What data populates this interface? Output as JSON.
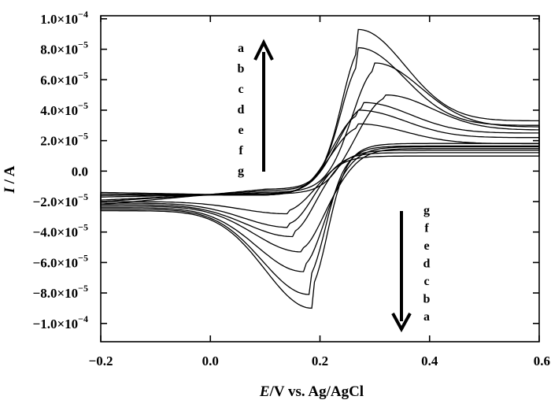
{
  "chart_data": {
    "type": "line",
    "xlabel": {
      "italic": "E",
      "rest": "/V vs. Ag/AgCl"
    },
    "ylabel": {
      "italic": "I",
      "rest": " / A"
    },
    "xlim": [
      -0.2,
      0.6
    ],
    "ylim": [
      -0.000112,
      0.000102
    ],
    "x_ticks": [
      -0.2,
      0.0,
      0.2,
      0.4,
      0.6
    ],
    "x_tick_labels": [
      "−0.2",
      "0.0",
      "0.2",
      "0.4",
      "0.6"
    ],
    "y_ticks": [
      0.0001,
      8e-05,
      6e-05,
      4e-05,
      2e-05,
      0,
      -2e-05,
      -4e-05,
      -6e-05,
      -8e-05,
      -0.0001
    ],
    "y_tick_labels": [
      {
        "mant": "1.0",
        "exp": "−4"
      },
      {
        "mant": "8.0",
        "exp": "−5"
      },
      {
        "mant": "6.0",
        "exp": "−5"
      },
      {
        "mant": "4.0",
        "exp": "−5"
      },
      {
        "mant": "2.0",
        "exp": "−5"
      },
      {
        "mant": "0.0",
        "exp": ""
      },
      {
        "mant": "−2.0",
        "exp": "−5"
      },
      {
        "mant": "−4.0",
        "exp": "−5"
      },
      {
        "mant": "−6.0",
        "exp": "−5"
      },
      {
        "mant": "−8.0",
        "exp": "−5"
      },
      {
        "mant": "−1.0",
        "exp": "−4"
      }
    ],
    "grid": false,
    "series": [
      {
        "name": "a",
        "oxidation_peak": [
          0.27,
          9.3e-05
        ],
        "reduction_peak": [
          0.185,
          -9e-05
        ],
        "start_current": -2.2e-05,
        "end_current": 3.3e-05,
        "baseline_left": -1.2e-05,
        "baseline_left_cathodic": -2.6e-05
      },
      {
        "name": "b",
        "oxidation_peak": [
          0.27,
          8.1e-05
        ],
        "reduction_peak": [
          0.18,
          -8.1e-05
        ],
        "start_current": -2e-05,
        "end_current": 3e-05,
        "baseline_left": -1.3e-05,
        "baseline_left_cathodic": -2.5e-05
      },
      {
        "name": "c",
        "oxidation_peak": [
          0.3,
          7.1e-05
        ],
        "reduction_peak": [
          0.17,
          -6.6e-05
        ],
        "start_current": -1.9e-05,
        "end_current": 2.9e-05,
        "baseline_left": -1.4e-05,
        "baseline_left_cathodic": -2.4e-05
      },
      {
        "name": "d",
        "oxidation_peak": [
          0.32,
          5e-05
        ],
        "reduction_peak": [
          0.165,
          -5.3e-05
        ],
        "start_current": -1.7e-05,
        "end_current": 2.7e-05,
        "baseline_left": -1.5e-05,
        "baseline_left_cathodic": -2.3e-05
      },
      {
        "name": "e",
        "oxidation_peak": [
          0.28,
          4.5e-05
        ],
        "reduction_peak": [
          0.15,
          -4.3e-05
        ],
        "start_current": -1.6e-05,
        "end_current": 2.5e-05,
        "baseline_left": -1.5e-05,
        "baseline_left_cathodic": -2.2e-05
      },
      {
        "name": "f",
        "oxidation_peak": [
          0.27,
          4e-05
        ],
        "reduction_peak": [
          0.145,
          -3.7e-05
        ],
        "start_current": -1.5e-05,
        "end_current": 2.2e-05,
        "baseline_left": -1.6e-05,
        "baseline_left_cathodic": -2.1e-05
      },
      {
        "name": "g",
        "oxidation_peak": [
          0.27,
          3.1e-05
        ],
        "reduction_peak": [
          0.14,
          -2.8e-05
        ],
        "start_current": -1.4e-05,
        "end_current": 1.8e-05,
        "baseline_left": -1.6e-05,
        "baseline_left_cathodic": -2e-05
      }
    ],
    "annotations": {
      "oxidation_arrow": {
        "direction": "up",
        "labels": [
          "a",
          "b",
          "c",
          "d",
          "e",
          "f",
          "g"
        ]
      },
      "reduction_arrow": {
        "direction": "down",
        "labels": [
          "g",
          "f",
          "e",
          "d",
          "c",
          "b",
          "a"
        ]
      }
    }
  }
}
